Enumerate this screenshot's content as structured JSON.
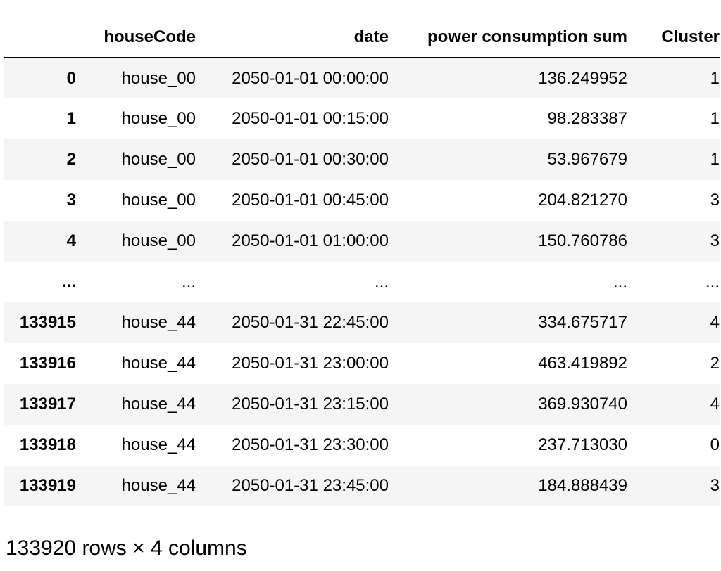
{
  "table": {
    "columns": [
      "",
      "houseCode",
      "date",
      "power consumption sum",
      "Cluster"
    ],
    "rows": [
      {
        "index": "0",
        "houseCode": "house_00",
        "date": "2050-01-01 00:00:00",
        "power": "136.249952",
        "cluster": "1"
      },
      {
        "index": "1",
        "houseCode": "house_00",
        "date": "2050-01-01 00:15:00",
        "power": "98.283387",
        "cluster": "1"
      },
      {
        "index": "2",
        "houseCode": "house_00",
        "date": "2050-01-01 00:30:00",
        "power": "53.967679",
        "cluster": "1"
      },
      {
        "index": "3",
        "houseCode": "house_00",
        "date": "2050-01-01 00:45:00",
        "power": "204.821270",
        "cluster": "3"
      },
      {
        "index": "4",
        "houseCode": "house_00",
        "date": "2050-01-01 01:00:00",
        "power": "150.760786",
        "cluster": "3"
      },
      {
        "index": "...",
        "houseCode": "...",
        "date": "...",
        "power": "...",
        "cluster": "..."
      },
      {
        "index": "133915",
        "houseCode": "house_44",
        "date": "2050-01-31 22:45:00",
        "power": "334.675717",
        "cluster": "4"
      },
      {
        "index": "133916",
        "houseCode": "house_44",
        "date": "2050-01-31 23:00:00",
        "power": "463.419892",
        "cluster": "2"
      },
      {
        "index": "133917",
        "houseCode": "house_44",
        "date": "2050-01-31 23:15:00",
        "power": "369.930740",
        "cluster": "4"
      },
      {
        "index": "133918",
        "houseCode": "house_44",
        "date": "2050-01-31 23:30:00",
        "power": "237.713030",
        "cluster": "0"
      },
      {
        "index": "133919",
        "houseCode": "house_44",
        "date": "2050-01-31 23:45:00",
        "power": "184.888439",
        "cluster": "3"
      }
    ]
  },
  "footer": {
    "shape_text": "133920 rows × 4 columns"
  }
}
